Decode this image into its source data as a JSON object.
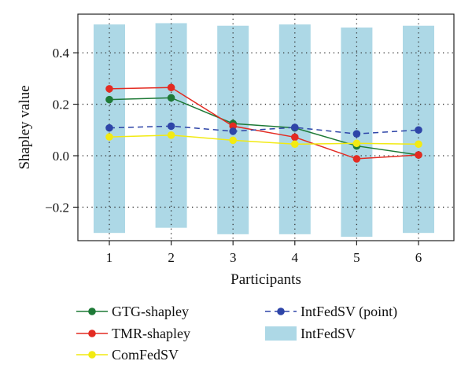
{
  "chart_data": {
    "type": "line",
    "xlabel": "Participants",
    "ylabel": "Shapley value",
    "categories": [
      "1",
      "2",
      "3",
      "4",
      "5",
      "6"
    ],
    "ylim": [
      -0.33,
      0.55
    ],
    "yticks": [
      -0.2,
      0.0,
      0.2,
      0.4
    ],
    "ytick_labels": [
      "−0.2",
      "0.0",
      "0.2",
      "0.4"
    ],
    "grid": "dotted",
    "legend_position": "bottom",
    "bars": {
      "name": "IntFedSV",
      "color": "#add8e6",
      "low": [
        -0.3,
        -0.28,
        -0.305,
        -0.305,
        -0.315,
        -0.3
      ],
      "high": [
        0.51,
        0.515,
        0.505,
        0.51,
        0.498,
        0.505
      ]
    },
    "series": [
      {
        "name": "GTG-shapley",
        "color": "#1e7a37",
        "style": "solid",
        "values": [
          0.218,
          0.225,
          0.125,
          0.108,
          0.038,
          0.003
        ]
      },
      {
        "name": "TMR-shapley",
        "color": "#e32b22",
        "style": "solid",
        "values": [
          0.26,
          0.265,
          0.115,
          0.072,
          -0.012,
          0.003
        ]
      },
      {
        "name": "ComFedSV",
        "color": "#f2ea12",
        "style": "solid",
        "values": [
          0.073,
          0.08,
          0.06,
          0.045,
          0.048,
          0.045
        ]
      },
      {
        "name": "IntFedSV (point)",
        "color": "#2e45a8",
        "style": "dashed",
        "values": [
          0.108,
          0.115,
          0.095,
          0.11,
          0.085,
          0.1
        ]
      }
    ],
    "legend": [
      {
        "label": "GTG-shapley",
        "kind": "line",
        "color": "#1e7a37",
        "style": "solid"
      },
      {
        "label": "TMR-shapley",
        "kind": "line",
        "color": "#e32b22",
        "style": "solid"
      },
      {
        "label": "ComFedSV",
        "kind": "line",
        "color": "#f2ea12",
        "style": "solid"
      },
      {
        "label": "IntFedSV (point)",
        "kind": "line",
        "color": "#2e45a8",
        "style": "dashed"
      },
      {
        "label": "IntFedSV",
        "kind": "patch",
        "color": "#add8e6"
      }
    ]
  }
}
